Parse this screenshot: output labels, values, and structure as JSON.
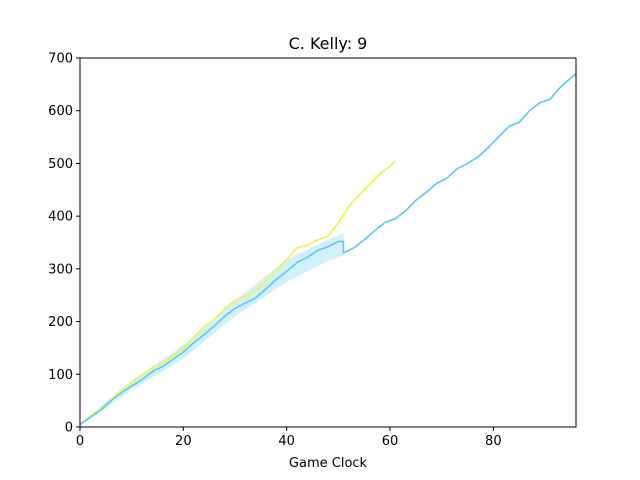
{
  "chart_data": {
    "type": "line",
    "title": "C. Kelly: 9",
    "xlabel": "Game Clock",
    "ylabel": "",
    "xlim": [
      0,
      96
    ],
    "ylim": [
      0,
      700
    ],
    "xticks": [
      0,
      20,
      40,
      60,
      80
    ],
    "yticks": [
      0,
      100,
      200,
      300,
      400,
      500,
      600,
      700
    ],
    "grid": false,
    "colors": {
      "yellow": "#e8f74a",
      "blue": "#5bc8ef",
      "band": "#bfe9f9"
    },
    "series": [
      {
        "color": "yellow",
        "x": [
          0,
          2,
          4,
          6,
          8,
          10,
          12,
          14,
          16,
          18,
          20,
          22,
          24,
          26,
          28,
          30,
          32,
          34,
          36,
          38,
          40,
          42,
          44,
          46,
          48,
          50,
          52,
          54,
          56,
          58,
          60,
          61
        ],
        "y": [
          5,
          20,
          35,
          50,
          70,
          85,
          100,
          112,
          122,
          135,
          150,
          170,
          190,
          205,
          225,
          240,
          248,
          258,
          278,
          298,
          318,
          340,
          345,
          355,
          362,
          388,
          418,
          440,
          460,
          480,
          495,
          505
        ]
      },
      {
        "color": "blue",
        "x": [
          0,
          2,
          4,
          6,
          8,
          10,
          12,
          14,
          16,
          18,
          20,
          22,
          24,
          26,
          28,
          30,
          32,
          34,
          36,
          38,
          40,
          42,
          44,
          46,
          48,
          50,
          51,
          51,
          53,
          55,
          57,
          59,
          61,
          63,
          65,
          67,
          69,
          71,
          73,
          75,
          77,
          79,
          81,
          83,
          85,
          87,
          89,
          91,
          93,
          95,
          96
        ],
        "y": [
          5,
          18,
          32,
          50,
          65,
          78,
          90,
          105,
          115,
          128,
          142,
          160,
          175,
          192,
          210,
          225,
          235,
          245,
          262,
          280,
          295,
          312,
          322,
          335,
          342,
          352,
          352,
          330,
          340,
          355,
          372,
          388,
          395,
          410,
          430,
          445,
          462,
          472,
          490,
          500,
          512,
          530,
          550,
          570,
          578,
          600,
          615,
          622,
          645,
          662,
          670
        ]
      }
    ],
    "band": {
      "color": "band",
      "x": [
        0,
        10,
        20,
        30,
        40,
        48,
        51
      ],
      "lower": [
        3,
        70,
        130,
        210,
        275,
        315,
        325
      ],
      "upper": [
        7,
        88,
        155,
        240,
        318,
        355,
        368
      ]
    }
  }
}
